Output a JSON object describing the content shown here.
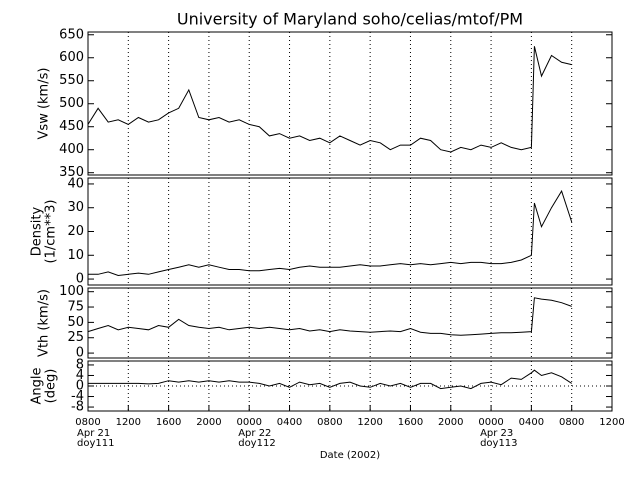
{
  "chart_data": [
    {
      "type": "line",
      "title": "University of Maryland  soho/celias/mtof/PM",
      "y_label": [
        "Vsw (km/s)"
      ],
      "xlim": [
        0,
        52
      ],
      "ylim": [
        345,
        656
      ],
      "yticks": [
        350,
        400,
        450,
        500,
        550,
        600,
        650
      ],
      "grid": true,
      "series": [
        {
          "color": "#000000",
          "x": [
            0,
            1,
            2,
            3,
            4,
            5,
            6,
            7,
            8,
            9,
            10,
            11,
            12,
            13,
            14,
            15,
            16,
            17,
            18,
            19,
            20,
            21,
            22,
            23,
            24,
            25,
            26,
            27,
            28,
            29,
            30,
            31,
            32,
            33,
            34,
            35,
            36,
            37,
            38,
            39,
            40,
            41,
            42,
            43,
            44,
            44.3,
            45,
            46,
            47,
            48
          ],
          "values": [
            455,
            490,
            460,
            465,
            455,
            470,
            460,
            465,
            480,
            490,
            530,
            470,
            465,
            470,
            460,
            465,
            455,
            450,
            430,
            435,
            425,
            430,
            420,
            425,
            415,
            430,
            420,
            410,
            420,
            415,
            400,
            410,
            410,
            425,
            420,
            400,
            395,
            405,
            400,
            410,
            405,
            415,
            405,
            400,
            405,
            625,
            560,
            605,
            590,
            585
          ]
        }
      ]
    },
    {
      "type": "line",
      "y_label": [
        "Density",
        "(1/cm**3)"
      ],
      "xlim": [
        0,
        52
      ],
      "ylim": [
        -2.5,
        42.5
      ],
      "yticks": [
        0,
        10,
        20,
        30,
        40
      ],
      "grid": true,
      "series": [
        {
          "color": "#000000",
          "x": [
            0,
            1,
            2,
            3,
            4,
            5,
            6,
            7,
            8,
            9,
            10,
            11,
            12,
            13,
            14,
            15,
            16,
            17,
            18,
            19,
            20,
            21,
            22,
            23,
            24,
            25,
            26,
            27,
            28,
            29,
            30,
            31,
            32,
            33,
            34,
            35,
            36,
            37,
            38,
            39,
            40,
            41,
            42,
            43,
            44,
            44.3,
            45,
            46,
            47,
            48
          ],
          "values": [
            2,
            2,
            3,
            1.5,
            2,
            2.5,
            2,
            3,
            4,
            5,
            6,
            5,
            6,
            5,
            4,
            4,
            3.5,
            3.5,
            4,
            4.5,
            4,
            5,
            5.5,
            5,
            5,
            5,
            5.5,
            6,
            5.5,
            5.5,
            6,
            6.5,
            6,
            6.5,
            6,
            6.5,
            7,
            6.5,
            7,
            7,
            6.5,
            6.5,
            7,
            8,
            10,
            32,
            22,
            30,
            37,
            24
          ]
        }
      ]
    },
    {
      "type": "line",
      "y_label": [
        "Vth (km/s)"
      ],
      "xlim": [
        0,
        52
      ],
      "ylim": [
        -8,
        106
      ],
      "yticks": [
        0,
        25,
        50,
        75,
        100
      ],
      "grid": true,
      "series": [
        {
          "color": "#000000",
          "x": [
            0,
            1,
            2,
            3,
            4,
            5,
            6,
            7,
            8,
            9,
            10,
            11,
            12,
            13,
            14,
            15,
            16,
            17,
            18,
            19,
            20,
            21,
            22,
            23,
            24,
            25,
            26,
            27,
            28,
            29,
            30,
            31,
            32,
            33,
            34,
            35,
            36,
            37,
            38,
            39,
            40,
            41,
            42,
            43,
            44,
            44.3,
            45,
            46,
            47,
            48
          ],
          "values": [
            35,
            40,
            45,
            38,
            42,
            40,
            38,
            45,
            42,
            55,
            45,
            42,
            40,
            42,
            38,
            40,
            42,
            40,
            42,
            40,
            38,
            40,
            36,
            38,
            35,
            38,
            36,
            35,
            34,
            35,
            36,
            35,
            40,
            34,
            32,
            32,
            30,
            29,
            30,
            31,
            32,
            33,
            33,
            34,
            35,
            90,
            88,
            86,
            82,
            76
          ]
        }
      ]
    },
    {
      "type": "line",
      "y_label": [
        "Angle",
        "(deg)"
      ],
      "xlim": [
        0,
        52
      ],
      "ylim": [
        -9.5,
        9.5
      ],
      "yticks": [
        -8,
        -4,
        0,
        4,
        8
      ],
      "grid": true,
      "zero_line": true,
      "x_label": "Date (2002)",
      "xticks": [
        {
          "value": 0,
          "label": "0800"
        },
        {
          "value": 4,
          "label": "1200"
        },
        {
          "value": 8,
          "label": "1600"
        },
        {
          "value": 12,
          "label": "2000"
        },
        {
          "value": 16,
          "label": "0000"
        },
        {
          "value": 20,
          "label": "0400"
        },
        {
          "value": 24,
          "label": "0800"
        },
        {
          "value": 28,
          "label": "1200"
        },
        {
          "value": 32,
          "label": "1600"
        },
        {
          "value": 36,
          "label": "2000"
        },
        {
          "value": 40,
          "label": "0000"
        },
        {
          "value": 44,
          "label": "0400"
        },
        {
          "value": 48,
          "label": "0800"
        },
        {
          "value": 52,
          "label": "1200"
        }
      ],
      "date_labels": [
        {
          "x": 0,
          "lines": [
            "Apr 21",
            "doy111"
          ]
        },
        {
          "x": 16,
          "lines": [
            "Apr 22",
            "doy112"
          ]
        },
        {
          "x": 40,
          "lines": [
            "Apr 23",
            "doy113"
          ]
        }
      ],
      "series": [
        {
          "color": "#000000",
          "x": [
            0,
            1,
            2,
            3,
            4,
            5,
            6,
            7,
            8,
            9,
            10,
            11,
            12,
            13,
            14,
            15,
            16,
            17,
            18,
            19,
            20,
            21,
            22,
            23,
            24,
            25,
            26,
            27,
            28,
            29,
            30,
            31,
            32,
            33,
            34,
            35,
            36,
            37,
            38,
            39,
            40,
            41,
            42,
            43,
            44,
            44.3,
            45,
            46,
            47,
            48
          ],
          "values": [
            1,
            1,
            1,
            1,
            1,
            1,
            0.8,
            1,
            2,
            1.5,
            2,
            1.5,
            2,
            1.5,
            2,
            1.5,
            1.5,
            1,
            0,
            1,
            -0.5,
            1.5,
            0.5,
            1,
            -0.5,
            1,
            1.5,
            0,
            -0.5,
            1,
            0,
            1,
            -0.5,
            1,
            1,
            -1,
            -0.5,
            0,
            -1,
            1,
            1.5,
            0.5,
            3,
            2.5,
            5,
            6,
            4,
            5,
            3.5,
            1
          ]
        }
      ]
    }
  ]
}
